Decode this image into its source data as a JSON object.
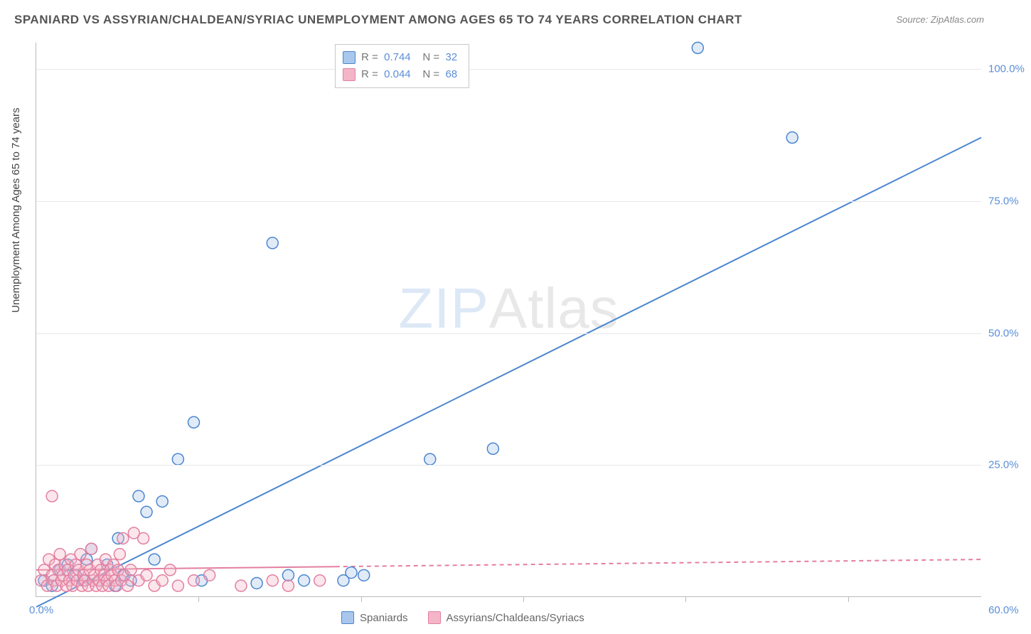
{
  "title": "SPANIARD VS ASSYRIAN/CHALDEAN/SYRIAC UNEMPLOYMENT AMONG AGES 65 TO 74 YEARS CORRELATION CHART",
  "source_label": "Source: ZipAtlas.com",
  "y_axis_label": "Unemployment Among Ages 65 to 74 years",
  "watermark": {
    "part1": "ZIP",
    "part2": "Atlas"
  },
  "chart": {
    "type": "scatter",
    "xlim": [
      0,
      60
    ],
    "ylim": [
      0,
      105
    ],
    "x_ticks": [
      10.3,
      20.6,
      30.9,
      41.2,
      51.5
    ],
    "x_tick_labels": {
      "min": "0.0%",
      "max": "60.0%"
    },
    "y_gridlines": [
      25,
      50,
      75,
      100
    ],
    "y_tick_labels": [
      "25.0%",
      "50.0%",
      "75.0%",
      "100.0%"
    ],
    "background_color": "#ffffff",
    "grid_color": "#e8e8e8",
    "axis_color": "#bbbbbb",
    "axis_label_color": "#5b8fd6",
    "marker_radius": 8,
    "marker_stroke_width": 1.5,
    "marker_fill_opacity": 0.35,
    "trend_line_width": 2,
    "dash_pattern": "6,5",
    "series": [
      {
        "name": "Spaniards",
        "color_stroke": "#4a86d0",
        "color_fill": "#a9c7ec",
        "R": "0.744",
        "N": "32",
        "points": [
          [
            0.5,
            3
          ],
          [
            1,
            2
          ],
          [
            1.5,
            5
          ],
          [
            2,
            6
          ],
          [
            2.5,
            4
          ],
          [
            3,
            3
          ],
          [
            3.2,
            7
          ],
          [
            3.5,
            9
          ],
          [
            4,
            3
          ],
          [
            4.5,
            6
          ],
          [
            5,
            2
          ],
          [
            5.2,
            11
          ],
          [
            5.5,
            4
          ],
          [
            6,
            3
          ],
          [
            6.5,
            19
          ],
          [
            7,
            16
          ],
          [
            7.5,
            7
          ],
          [
            8,
            18
          ],
          [
            9,
            26
          ],
          [
            10,
            33
          ],
          [
            10.5,
            3
          ],
          [
            14,
            2.5
          ],
          [
            16,
            4
          ],
          [
            17,
            3
          ],
          [
            19.5,
            3
          ],
          [
            20,
            4.5
          ],
          [
            20.8,
            4
          ],
          [
            25,
            26
          ],
          [
            29,
            28
          ],
          [
            15,
            67
          ],
          [
            42,
            104
          ],
          [
            48,
            87
          ]
        ],
        "trend": {
          "x1": 0,
          "y1": -2,
          "x2": 60,
          "y2": 87,
          "solid_until_x": 60
        }
      },
      {
        "name": "Assyrians/Chaldeans/Syriacs",
        "color_stroke": "#e37fa0",
        "color_fill": "#f3b6c8",
        "R": "0.044",
        "N": "68",
        "points": [
          [
            0.3,
            3
          ],
          [
            0.5,
            5
          ],
          [
            0.7,
            2
          ],
          [
            0.8,
            7
          ],
          [
            1,
            4
          ],
          [
            1,
            19
          ],
          [
            1.1,
            3
          ],
          [
            1.2,
            6
          ],
          [
            1.3,
            2
          ],
          [
            1.4,
            5
          ],
          [
            1.5,
            8
          ],
          [
            1.6,
            3
          ],
          [
            1.7,
            4
          ],
          [
            1.8,
            6
          ],
          [
            1.9,
            2
          ],
          [
            2,
            5
          ],
          [
            2.1,
            3
          ],
          [
            2.2,
            7
          ],
          [
            2.3,
            2
          ],
          [
            2.4,
            4
          ],
          [
            2.5,
            6
          ],
          [
            2.6,
            3
          ],
          [
            2.7,
            5
          ],
          [
            2.8,
            8
          ],
          [
            2.9,
            2
          ],
          [
            3,
            4
          ],
          [
            3.1,
            3
          ],
          [
            3.2,
            6
          ],
          [
            3.3,
            2
          ],
          [
            3.4,
            5
          ],
          [
            3.5,
            9
          ],
          [
            3.6,
            3
          ],
          [
            3.7,
            4
          ],
          [
            3.8,
            2
          ],
          [
            3.9,
            6
          ],
          [
            4,
            3
          ],
          [
            4.1,
            5
          ],
          [
            4.2,
            2
          ],
          [
            4.3,
            4
          ],
          [
            4.4,
            7
          ],
          [
            4.5,
            3
          ],
          [
            4.6,
            2
          ],
          [
            4.7,
            5
          ],
          [
            4.8,
            4
          ],
          [
            4.9,
            6
          ],
          [
            5,
            3
          ],
          [
            5.1,
            2
          ],
          [
            5.2,
            5
          ],
          [
            5.3,
            8
          ],
          [
            5.4,
            3
          ],
          [
            5.5,
            11
          ],
          [
            5.6,
            4
          ],
          [
            5.8,
            2
          ],
          [
            6,
            5
          ],
          [
            6.2,
            12
          ],
          [
            6.5,
            3
          ],
          [
            6.8,
            11
          ],
          [
            7,
            4
          ],
          [
            7.5,
            2
          ],
          [
            8,
            3
          ],
          [
            8.5,
            5
          ],
          [
            9,
            2
          ],
          [
            10,
            3
          ],
          [
            11,
            4
          ],
          [
            13,
            2
          ],
          [
            15,
            3
          ],
          [
            16,
            2
          ],
          [
            18,
            3
          ]
        ],
        "trend": {
          "x1": 0,
          "y1": 5,
          "x2": 60,
          "y2": 7,
          "solid_until_x": 19
        }
      }
    ]
  },
  "stats_box": {
    "rows": [
      {
        "swatch_fill": "#a9c7ec",
        "swatch_stroke": "#4a86d0",
        "r_val": "0.744",
        "n_val": "32"
      },
      {
        "swatch_fill": "#f3b6c8",
        "swatch_stroke": "#e37fa0",
        "r_val": "0.044",
        "n_val": "68"
      }
    ],
    "labels": {
      "R": "R  =",
      "N": "N  ="
    }
  },
  "bottom_legend": [
    {
      "swatch_fill": "#a9c7ec",
      "swatch_stroke": "#4a86d0",
      "label": "Spaniards"
    },
    {
      "swatch_fill": "#f3b6c8",
      "swatch_stroke": "#e37fa0",
      "label": "Assyrians/Chaldeans/Syriacs"
    }
  ]
}
